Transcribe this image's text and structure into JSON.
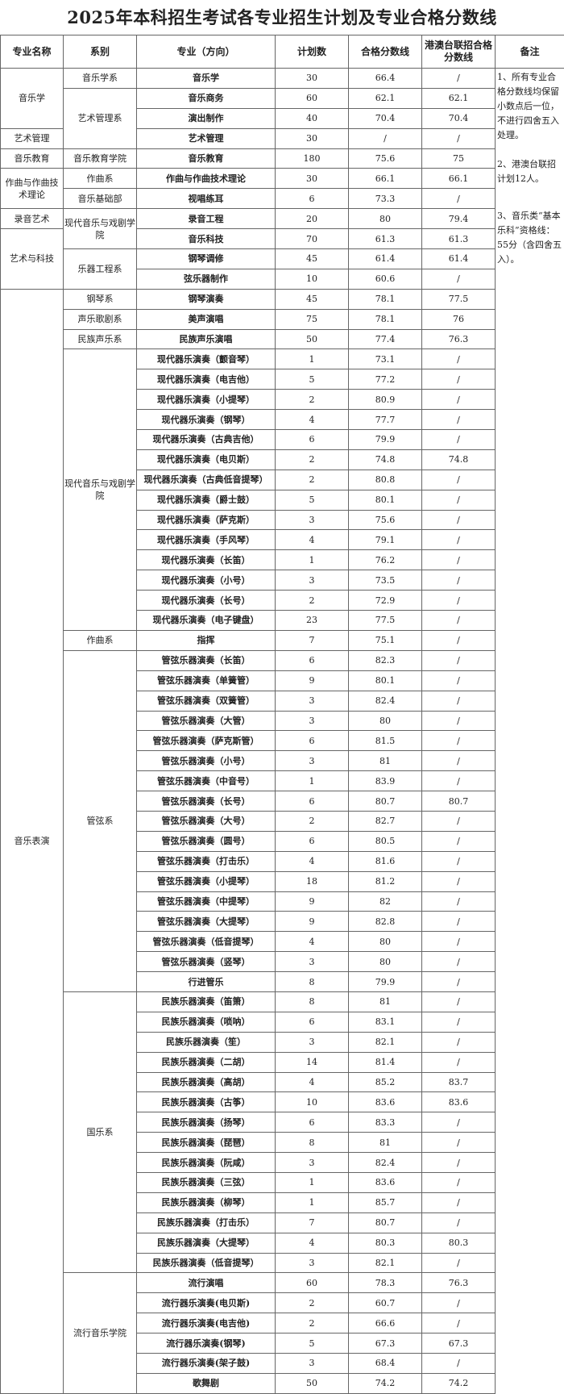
{
  "title": "2025年本科招生考试各专业招生计划及专业合格分数线",
  "headers": [
    "专业名称",
    "系别",
    "专业（方向）",
    "计划数",
    "合格分数线",
    "港澳台联招合格分数线",
    "备注"
  ],
  "remarks": [
    "1、所有专业合格分数线均保留小数点后一位，不进行四舍五入处理。",
    "2、港澳台联招计划12人。",
    "3、音乐类“基本乐科”资格线：55分（含四舍五入）。"
  ],
  "major_groups": [
    {
      "name": "音乐学",
      "count": 3
    },
    {
      "name": "艺术管理",
      "count": 1
    },
    {
      "name": "音乐教育",
      "count": 1
    },
    {
      "name": "作曲与作曲技术理论",
      "count": 2
    },
    {
      "name": "录音艺术",
      "count": 1
    },
    {
      "name": "艺术与科技",
      "count": 3
    },
    {
      "name": "音乐表演",
      "count": 55
    }
  ],
  "dept_groups": [
    {
      "name": "音乐学系",
      "count": 1
    },
    {
      "name": "艺术管理系",
      "count": 3
    },
    {
      "name": "音乐教育学院",
      "count": 1
    },
    {
      "name": "作曲系",
      "count": 1
    },
    {
      "name": "音乐基础部",
      "count": 1
    },
    {
      "name": "现代音乐与戏剧学院",
      "count": 2
    },
    {
      "name": "乐器工程系",
      "count": 2
    },
    {
      "name": "钢琴系",
      "count": 1
    },
    {
      "name": "声乐歌剧系",
      "count": 1
    },
    {
      "name": "民族声乐系",
      "count": 1
    },
    {
      "name": "现代音乐与戏剧学院",
      "count": 14
    },
    {
      "name": "作曲系",
      "count": 1
    },
    {
      "name": "管弦系",
      "count": 17
    },
    {
      "name": "国乐系",
      "count": 14
    },
    {
      "name": "流行音乐学院",
      "count": 6
    }
  ],
  "rows": [
    [
      "音乐学",
      "30",
      "66.4",
      "/"
    ],
    [
      "音乐商务",
      "60",
      "62.1",
      "62.1"
    ],
    [
      "演出制作",
      "40",
      "70.4",
      "70.4"
    ],
    [
      "艺术管理",
      "30",
      "/",
      "/"
    ],
    [
      "音乐教育",
      "180",
      "75.6",
      "75"
    ],
    [
      "作曲与作曲技术理论",
      "30",
      "66.1",
      "66.1"
    ],
    [
      "视唱练耳",
      "6",
      "73.3",
      "/"
    ],
    [
      "录音工程",
      "20",
      "80",
      "79.4"
    ],
    [
      "音乐科技",
      "70",
      "61.3",
      "61.3"
    ],
    [
      "钢琴调修",
      "45",
      "61.4",
      "61.4"
    ],
    [
      "弦乐器制作",
      "10",
      "60.6",
      "/"
    ],
    [
      "钢琴演奏",
      "45",
      "78.1",
      "77.5"
    ],
    [
      "美声演唱",
      "75",
      "78.1",
      "76"
    ],
    [
      "民族声乐演唱",
      "50",
      "77.4",
      "76.3"
    ],
    [
      "现代器乐演奏（颤音琴）",
      "1",
      "73.1",
      "/"
    ],
    [
      "现代器乐演奏（电吉他）",
      "5",
      "77.2",
      "/"
    ],
    [
      "现代器乐演奏（小提琴）",
      "2",
      "80.9",
      "/"
    ],
    [
      "现代器乐演奏（钢琴）",
      "4",
      "77.7",
      "/"
    ],
    [
      "现代器乐演奏（古典吉他）",
      "6",
      "79.9",
      "/"
    ],
    [
      "现代器乐演奏（电贝斯）",
      "2",
      "74.8",
      "74.8"
    ],
    [
      "现代器乐演奏（古典低音提琴）",
      "2",
      "80.8",
      "/"
    ],
    [
      "现代器乐演奏（爵士鼓）",
      "5",
      "80.1",
      "/"
    ],
    [
      "现代器乐演奏（萨克斯）",
      "3",
      "75.6",
      "/"
    ],
    [
      "现代器乐演奏（手风琴）",
      "4",
      "79.1",
      "/"
    ],
    [
      "现代器乐演奏（长笛）",
      "1",
      "76.2",
      "/"
    ],
    [
      "现代器乐演奏（小号）",
      "3",
      "73.5",
      "/"
    ],
    [
      "现代器乐演奏（长号）",
      "2",
      "72.9",
      "/"
    ],
    [
      "现代器乐演奏（电子键盘）",
      "23",
      "77.5",
      "/"
    ],
    [
      "指挥",
      "7",
      "75.1",
      "/"
    ],
    [
      "管弦乐器演奏（长笛）",
      "6",
      "82.3",
      "/"
    ],
    [
      "管弦乐器演奏（单簧管）",
      "9",
      "80.1",
      "/"
    ],
    [
      "管弦乐器演奏（双簧管）",
      "3",
      "82.4",
      "/"
    ],
    [
      "管弦乐器演奏（大管）",
      "3",
      "80",
      "/"
    ],
    [
      "管弦乐器演奏（萨克斯管）",
      "6",
      "81.5",
      "/"
    ],
    [
      "管弦乐器演奏（小号）",
      "3",
      "81",
      "/"
    ],
    [
      "管弦乐器演奏（中音号）",
      "1",
      "83.9",
      "/"
    ],
    [
      "管弦乐器演奏（长号）",
      "6",
      "80.7",
      "80.7"
    ],
    [
      "管弦乐器演奏（大号）",
      "2",
      "82.7",
      "/"
    ],
    [
      "管弦乐器演奏（圆号）",
      "6",
      "80.5",
      "/"
    ],
    [
      "管弦乐器演奏（打击乐）",
      "4",
      "81.6",
      "/"
    ],
    [
      "管弦乐器演奏（小提琴）",
      "18",
      "81.2",
      "/"
    ],
    [
      "管弦乐器演奏（中提琴）",
      "9",
      "82",
      "/"
    ],
    [
      "管弦乐器演奏（大提琴）",
      "9",
      "82.8",
      "/"
    ],
    [
      "管弦乐器演奏（低音提琴）",
      "4",
      "80",
      "/"
    ],
    [
      "管弦乐器演奏（竖琴）",
      "3",
      "80",
      "/"
    ],
    [
      "行进管乐",
      "8",
      "79.9",
      "/"
    ],
    [
      "民族乐器演奏（笛箫）",
      "8",
      "81",
      "/"
    ],
    [
      "民族乐器演奏（唢呐）",
      "6",
      "83.1",
      "/"
    ],
    [
      "民族乐器演奏（笙）",
      "3",
      "82.1",
      "/"
    ],
    [
      "民族乐器演奏（二胡）",
      "14",
      "81.4",
      "/"
    ],
    [
      "民族乐器演奏（高胡）",
      "4",
      "85.2",
      "83.7"
    ],
    [
      "民族乐器演奏（古筝）",
      "10",
      "83.6",
      "83.6"
    ],
    [
      "民族乐器演奏（扬琴）",
      "6",
      "83.3",
      "/"
    ],
    [
      "民族乐器演奏（琵琶）",
      "8",
      "81",
      "/"
    ],
    [
      "民族乐器演奏（阮咸）",
      "3",
      "82.4",
      "/"
    ],
    [
      "民族乐器演奏（三弦）",
      "1",
      "83.6",
      "/"
    ],
    [
      "民族乐器演奏（柳琴）",
      "1",
      "85.7",
      "/"
    ],
    [
      "民族乐器演奏（打击乐）",
      "7",
      "80.7",
      "/"
    ],
    [
      "民族乐器演奏（大提琴）",
      "4",
      "80.3",
      "80.3"
    ],
    [
      "民族乐器演奏（低音提琴）",
      "3",
      "82.1",
      "/"
    ],
    [
      "流行演唱",
      "60",
      "78.3",
      "76.3"
    ],
    [
      "流行器乐演奏(电贝斯)",
      "2",
      "60.7",
      "/"
    ],
    [
      "流行器乐演奏(电吉他)",
      "2",
      "66.6",
      "/"
    ],
    [
      "流行器乐演奏(钢琴)",
      "5",
      "67.3",
      "67.3"
    ],
    [
      "流行器乐演奏(架子鼓)",
      "3",
      "68.4",
      "/"
    ],
    [
      "歌舞剧",
      "50",
      "74.2",
      "74.2"
    ]
  ]
}
